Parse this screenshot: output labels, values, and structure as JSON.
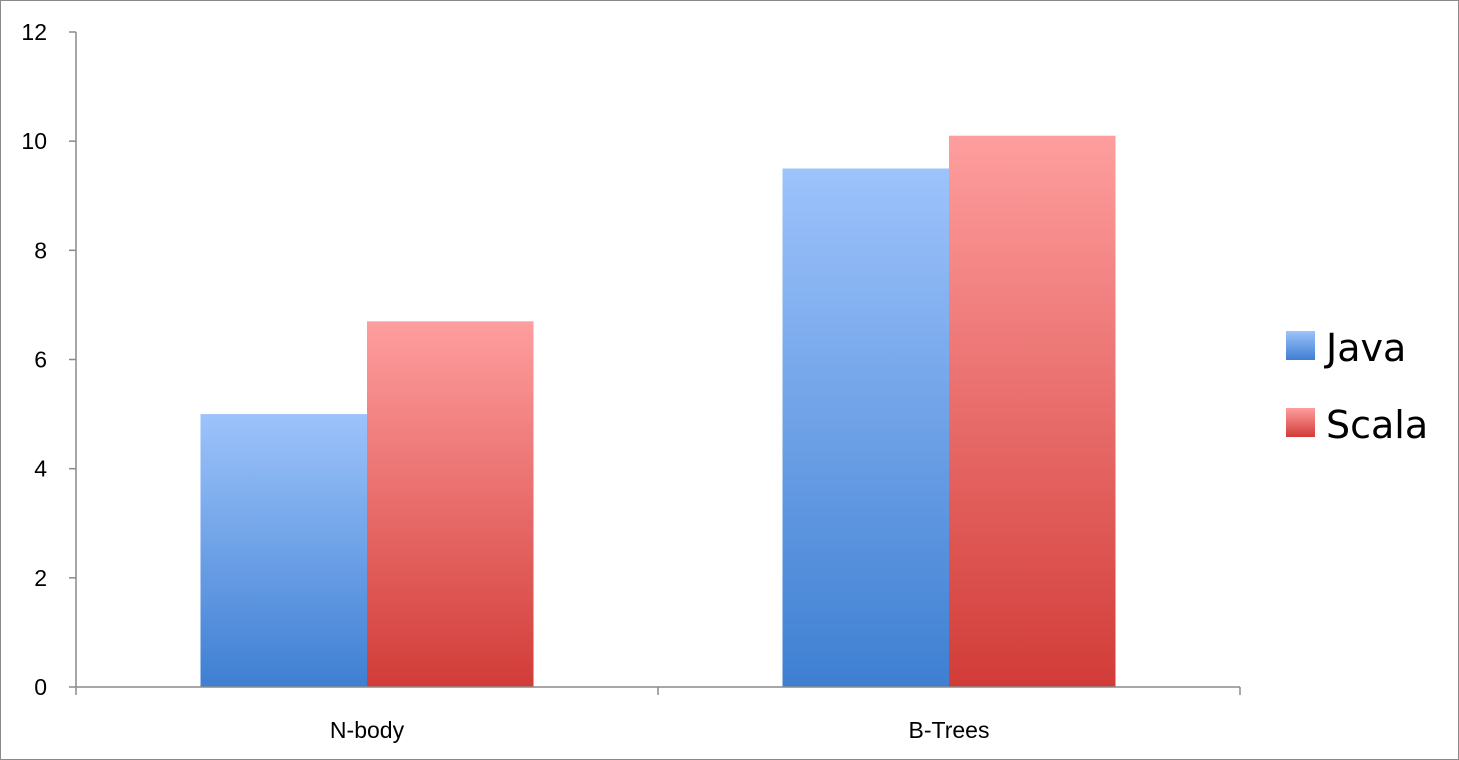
{
  "chart_data": {
    "type": "bar",
    "categories": [
      "N-body",
      "B-Trees"
    ],
    "series": [
      {
        "name": "Java",
        "values": [
          5.0,
          9.5
        ],
        "color_top": "#9dc3fb",
        "color_bottom": "#3e7fd2"
      },
      {
        "name": "Scala",
        "values": [
          6.7,
          10.1
        ],
        "color_top": "#fe9e9e",
        "color_bottom": "#d23c38"
      }
    ],
    "title": "",
    "xlabel": "",
    "ylabel": "",
    "ylim": [
      0,
      12
    ],
    "yticks": [
      0,
      2,
      4,
      6,
      8,
      10,
      12
    ],
    "ytick_labels": [
      "0",
      "2",
      "4",
      "6",
      "8",
      "10",
      "12"
    ],
    "grid": false,
    "legend_position": "right"
  },
  "colors": {
    "axis": "#8a8a8a",
    "border": "#8a8a8a",
    "background": "#ffffff"
  }
}
